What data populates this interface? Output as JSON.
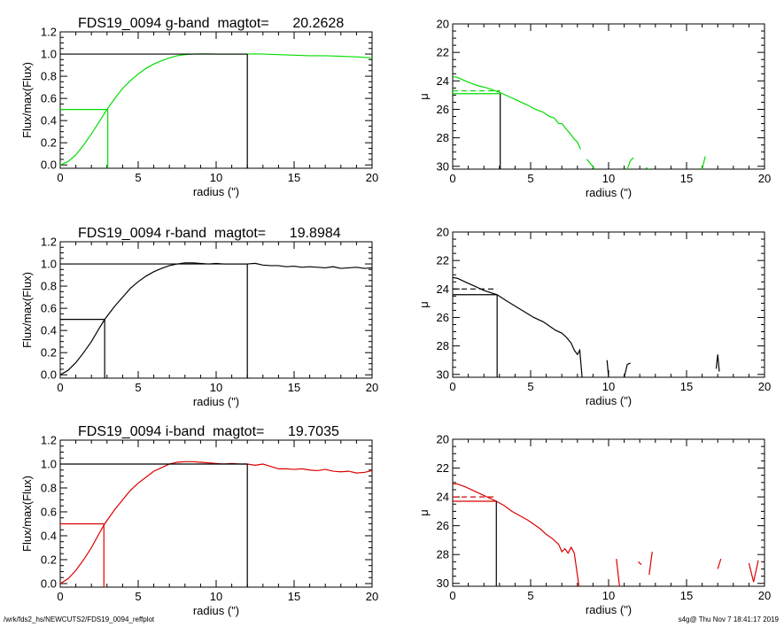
{
  "footer": {
    "left": "/wrk/fds2_hs/NEWCUTS2/FDS19_0094_reffplot",
    "right": "s4g@  Thu Nov  7 18:41:17 2019"
  },
  "chart_data": [
    {
      "type": "line",
      "band": "g",
      "color": "#00dd00",
      "title": "FDS19_0094 g-band  magtot=      20.2628",
      "xlabel": "radius (\")",
      "ylabel": "Flux/max(Flux)",
      "xlim": [
        0,
        20
      ],
      "ylim": [
        -0.03,
        1.2
      ],
      "xticks": [
        "0",
        "5",
        "10",
        "15",
        "20"
      ],
      "yticks": [
        "0.0",
        "0.2",
        "0.4",
        "0.6",
        "0.8",
        "1.0",
        "1.2"
      ],
      "series": [
        {
          "x": [
            0,
            0.5,
            1,
            1.5,
            2,
            2.5,
            3,
            3.5,
            4,
            4.5,
            5,
            5.5,
            6,
            6.5,
            7,
            7.5,
            8,
            8.5,
            9,
            9.5,
            10,
            10.5,
            11,
            11.5,
            12,
            12.5,
            13,
            14,
            15,
            16,
            17,
            18,
            19,
            20
          ],
          "y": [
            0.0,
            0.03,
            0.09,
            0.18,
            0.28,
            0.39,
            0.5,
            0.6,
            0.69,
            0.76,
            0.82,
            0.87,
            0.91,
            0.94,
            0.965,
            0.985,
            0.995,
            1.0,
            1.002,
            1.002,
            1.0,
            1.0,
            1.0,
            1.0,
            1.0,
            1.002,
            1.0,
            0.995,
            0.99,
            0.985,
            0.985,
            0.98,
            0.975,
            0.965
          ]
        }
      ],
      "half_light": {
        "x": 3.05,
        "y": 0.5
      },
      "total_radius": 12.0
    },
    {
      "type": "line",
      "band": "g",
      "color": "#00dd00",
      "xlabel": "radius (\")",
      "ylabel": "μ",
      "xlim": [
        0,
        20
      ],
      "ylim": [
        30.2,
        20
      ],
      "y_inverted": true,
      "xticks": [
        "0",
        "5",
        "10",
        "15",
        "20"
      ],
      "yticks": [
        "20",
        "22",
        "24",
        "26",
        "28",
        "30"
      ],
      "segments": [
        {
          "x": [
            0,
            0.3,
            0.8,
            1.5,
            2.2,
            3.0,
            3.6,
            4.2,
            4.8,
            5.3,
            5.8,
            6.2,
            6.5,
            6.8,
            7.0,
            7.3,
            7.6,
            7.8,
            8.0,
            8.2
          ],
          "y": [
            23.7,
            23.75,
            24.0,
            24.3,
            24.5,
            24.8,
            25.1,
            25.4,
            25.7,
            26.0,
            26.2,
            26.5,
            26.6,
            27.0,
            27.0,
            27.4,
            27.8,
            28.1,
            28.3,
            28.8
          ]
        },
        {
          "x": [
            8.6,
            8.9,
            9.1
          ],
          "y": [
            29.5,
            29.9,
            30.2
          ]
        },
        {
          "x": [
            11.2,
            11.4,
            11.6
          ],
          "y": [
            30.2,
            29.6,
            29.4
          ]
        },
        {
          "x": [
            12.4,
            12.6
          ],
          "y": [
            30.1,
            30.2
          ]
        },
        {
          "x": [
            16.0,
            16.2
          ],
          "y": [
            30.2,
            29.3
          ]
        }
      ],
      "half_light": {
        "x": 3.05,
        "mu": 24.9
      },
      "dashed_mu": 24.7
    },
    {
      "type": "line",
      "band": "r",
      "color": "#000000",
      "title": "FDS19_0094 r-band  magtot=      19.8984",
      "xlabel": "radius (\")",
      "ylabel": "Flux/max(Flux)",
      "xlim": [
        0,
        20
      ],
      "ylim": [
        -0.03,
        1.2
      ],
      "xticks": [
        "0",
        "5",
        "10",
        "15",
        "20"
      ],
      "yticks": [
        "0.0",
        "0.2",
        "0.4",
        "0.6",
        "0.8",
        "1.0",
        "1.2"
      ],
      "series": [
        {
          "x": [
            0,
            0.5,
            1,
            1.5,
            2,
            2.5,
            2.85,
            3.5,
            4,
            4.5,
            5,
            5.5,
            6,
            6.5,
            7,
            7.5,
            8,
            8.5,
            9,
            9.5,
            10,
            10.5,
            11,
            11.5,
            12,
            12.5,
            13,
            13.5,
            14,
            14.5,
            15,
            15.5,
            16,
            16.5,
            17,
            17.5,
            18,
            18.5,
            19,
            19.5,
            20
          ],
          "y": [
            0.0,
            0.04,
            0.11,
            0.2,
            0.3,
            0.42,
            0.5,
            0.62,
            0.7,
            0.78,
            0.84,
            0.89,
            0.93,
            0.96,
            0.985,
            1.0,
            1.01,
            1.01,
            1.005,
            1.0,
            1.005,
            1.0,
            1.0,
            1.0,
            1.0,
            1.005,
            0.99,
            0.985,
            0.985,
            0.975,
            0.98,
            0.97,
            0.975,
            0.97,
            0.965,
            0.975,
            0.96,
            0.965,
            0.97,
            0.96,
            0.965
          ]
        }
      ],
      "half_light": {
        "x": 2.85,
        "y": 0.5
      },
      "total_radius": 12.0
    },
    {
      "type": "line",
      "band": "r",
      "color": "#000000",
      "xlabel": "radius (\")",
      "ylabel": "μ",
      "xlim": [
        0,
        20
      ],
      "ylim": [
        30.2,
        20
      ],
      "y_inverted": true,
      "xticks": [
        "0",
        "5",
        "10",
        "15",
        "20"
      ],
      "yticks": [
        "20",
        "22",
        "24",
        "26",
        "28",
        "30"
      ],
      "segments": [
        {
          "x": [
            0,
            0.3,
            0.8,
            1.4,
            2.0,
            2.85,
            3.4,
            4.0,
            4.6,
            5.2,
            5.8,
            6.2,
            6.6,
            7.0,
            7.3,
            7.6,
            7.8,
            8.0,
            8.15,
            8.3
          ],
          "y": [
            23.2,
            23.25,
            23.5,
            23.8,
            24.1,
            24.4,
            24.8,
            25.2,
            25.6,
            26.0,
            26.3,
            26.6,
            26.9,
            27.1,
            27.4,
            27.8,
            28.3,
            28.6,
            28.3,
            30.2
          ]
        },
        {
          "x": [
            9.9,
            10.0
          ],
          "y": [
            29.0,
            30.2
          ]
        },
        {
          "x": [
            11.0,
            11.2,
            11.4
          ],
          "y": [
            30.2,
            29.3,
            29.2
          ]
        },
        {
          "x": [
            16.9,
            17.0,
            17.1
          ],
          "y": [
            29.6,
            28.6,
            29.8
          ]
        }
      ],
      "half_light": {
        "x": 2.85,
        "mu": 24.4
      },
      "dashed_mu": 24.0
    },
    {
      "type": "line",
      "band": "i",
      "color": "#dd0000",
      "title": "FDS19_0094 i-band  magtot=      19.7035",
      "xlabel": "radius (\")",
      "ylabel": "Flux/max(Flux)",
      "xlim": [
        0,
        20
      ],
      "ylim": [
        -0.03,
        1.2
      ],
      "xticks": [
        "0",
        "5",
        "10",
        "15",
        "20"
      ],
      "yticks": [
        "0.0",
        "0.2",
        "0.4",
        "0.6",
        "0.8",
        "1.0",
        "1.2"
      ],
      "series": [
        {
          "x": [
            0,
            0.5,
            1,
            1.5,
            2,
            2.5,
            2.85,
            3.5,
            4,
            4.5,
            5,
            5.5,
            6,
            6.5,
            7,
            7.5,
            8,
            8.5,
            9,
            9.5,
            10,
            10.5,
            11,
            11.5,
            12,
            12.5,
            13,
            13.5,
            14,
            14.5,
            15,
            15.5,
            16,
            16.5,
            17,
            17.5,
            18,
            18.5,
            19,
            19.5,
            20
          ],
          "y": [
            0.0,
            0.04,
            0.11,
            0.2,
            0.3,
            0.42,
            0.5,
            0.62,
            0.7,
            0.78,
            0.84,
            0.89,
            0.94,
            0.97,
            1.0,
            1.015,
            1.02,
            1.02,
            1.015,
            1.01,
            1.005,
            1.0,
            1.005,
            1.0,
            1.0,
            0.99,
            1.0,
            0.98,
            0.96,
            0.96,
            0.955,
            0.96,
            0.95,
            0.945,
            0.955,
            0.94,
            0.935,
            0.94,
            0.925,
            0.93,
            0.945
          ]
        }
      ],
      "half_light": {
        "x": 2.8,
        "y": 0.5
      },
      "total_radius": 12.0
    },
    {
      "type": "line",
      "band": "i",
      "color": "#dd0000",
      "xlabel": "radius (\")",
      "ylabel": "μ",
      "xlim": [
        0,
        20
      ],
      "ylim": [
        30.2,
        20
      ],
      "y_inverted": true,
      "xticks": [
        "0",
        "5",
        "10",
        "15",
        "20"
      ],
      "yticks": [
        "20",
        "22",
        "24",
        "26",
        "28",
        "30"
      ],
      "segments": [
        {
          "x": [
            0,
            0.3,
            0.8,
            1.4,
            2.0,
            2.8,
            3.3,
            3.8,
            4.3,
            4.8,
            5.2,
            5.6,
            6.0,
            6.4,
            6.8,
            7.0,
            7.2,
            7.4,
            7.6,
            7.8,
            8.1
          ],
          "y": [
            23.1,
            23.1,
            23.3,
            23.6,
            23.9,
            24.3,
            24.6,
            25.0,
            25.3,
            25.6,
            25.9,
            26.2,
            26.6,
            26.9,
            27.3,
            27.8,
            27.6,
            27.9,
            27.5,
            27.9,
            30.2
          ]
        },
        {
          "x": [
            10.5,
            10.7
          ],
          "y": [
            28.3,
            30.2
          ]
        },
        {
          "x": [
            11.9,
            12.1
          ],
          "y": [
            28.5,
            28.7
          ]
        },
        {
          "x": [
            12.6,
            12.8
          ],
          "y": [
            29.4,
            27.8
          ]
        },
        {
          "x": [
            17.0,
            17.2
          ],
          "y": [
            29.0,
            28.3
          ]
        },
        {
          "x": [
            19.0,
            19.3,
            19.6
          ],
          "y": [
            28.6,
            29.9,
            28.4
          ]
        }
      ],
      "half_light": {
        "x": 2.8,
        "mu": 24.3
      },
      "dashed_mu": 24.0
    }
  ]
}
